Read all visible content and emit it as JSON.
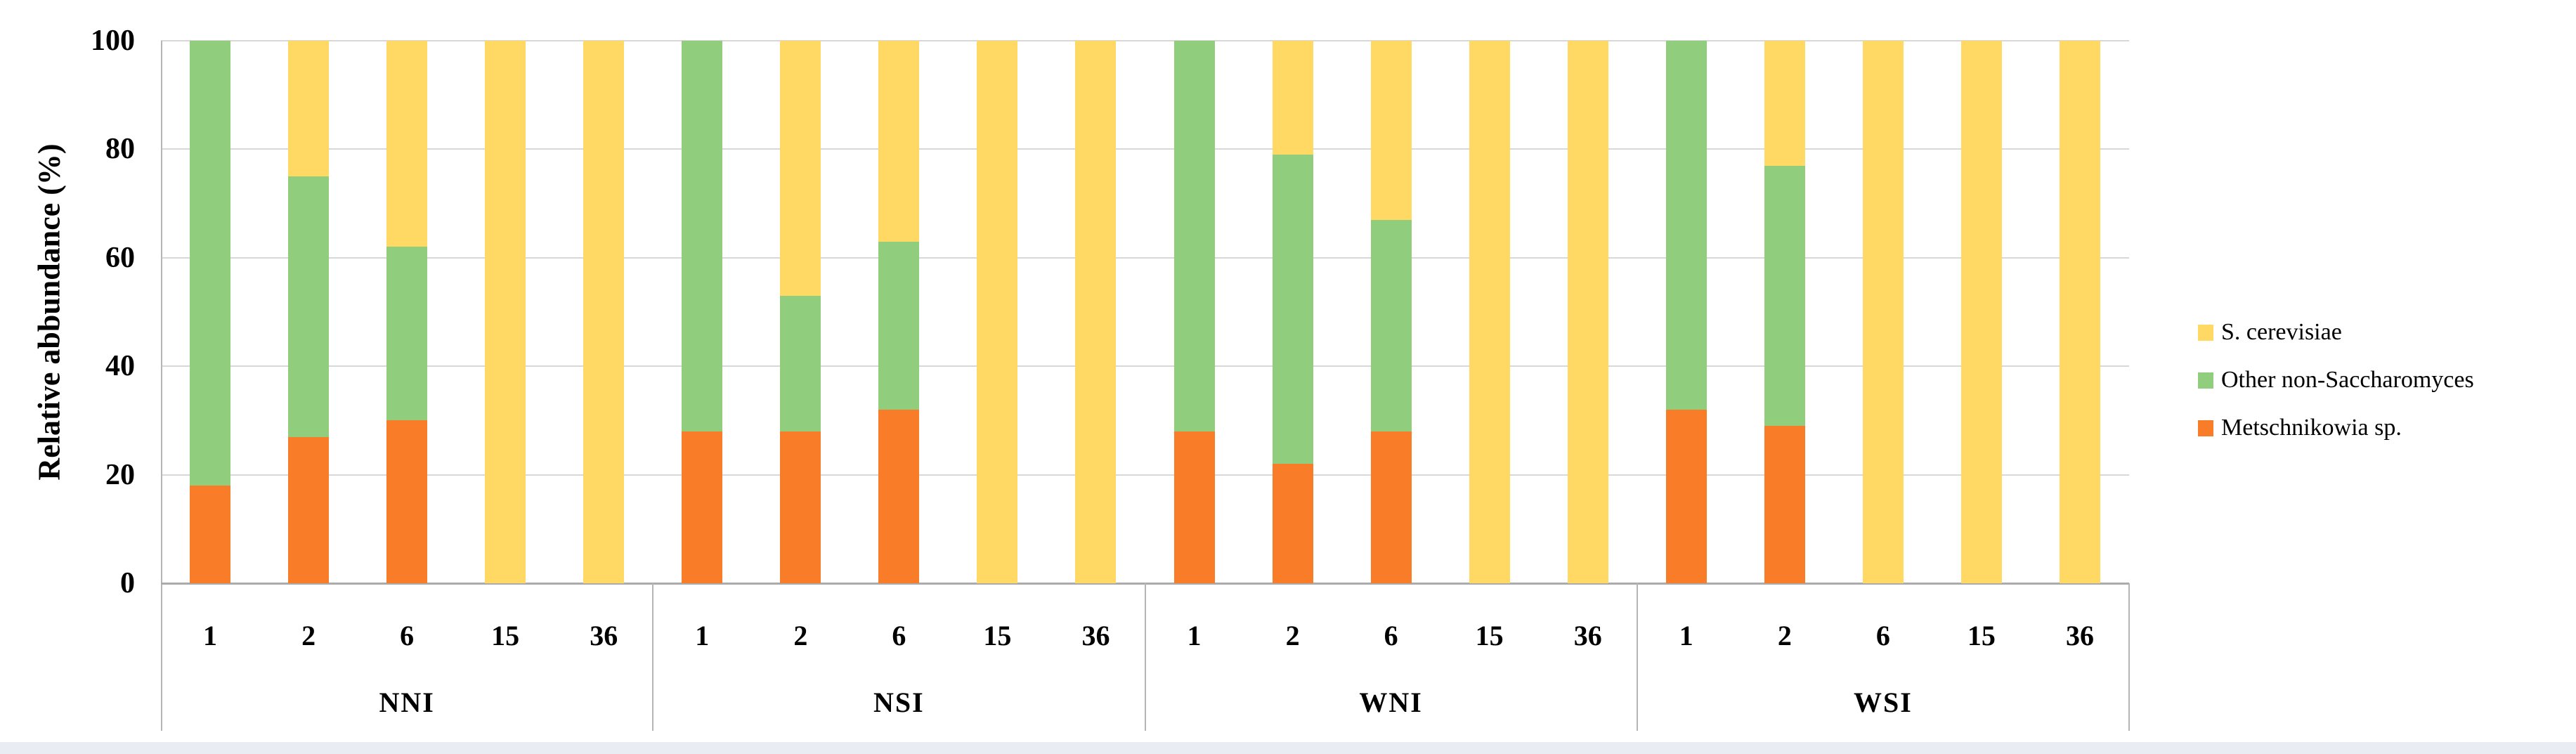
{
  "page": {
    "background": "#ffffff",
    "footer_strip_color": "#E9EDF3"
  },
  "figure": {
    "colors": {
      "s_cerevisiae": "#FFD964",
      "other_non_saccharomyces": "#90CE7D",
      "metschnikowia": "#F97D28",
      "gridline": "#D8D8D8",
      "axis_line": "#ABABAB",
      "separator_line": "#B5B5B5",
      "text": "#000000"
    },
    "legend": [
      {
        "label": "S. cerevisiae",
        "color_key": "s_cerevisiae"
      },
      {
        "label": "Other non-Saccharomyces",
        "color_key": "other_non_saccharomyces"
      },
      {
        "label": "Metschnikowia sp.",
        "color_key": "metschnikowia"
      }
    ]
  },
  "chart_data": {
    "type": "bar",
    "stacked": true,
    "title": "",
    "xlabel": "",
    "ylabel": "Relative abbundance  (%)",
    "ylim": [
      0,
      100
    ],
    "yticks": [
      0,
      20,
      40,
      60,
      80,
      100
    ],
    "grid": true,
    "legend_position": "right",
    "groups": [
      "NNI",
      "NSI",
      "WNI",
      "WSI"
    ],
    "categories": [
      "1",
      "2",
      "6",
      "15",
      "36"
    ],
    "series": [
      {
        "name": "Metschnikowia sp.",
        "color": "#F97D28",
        "values": {
          "NNI": [
            18,
            27,
            30,
            0,
            0
          ],
          "NSI": [
            28,
            28,
            32,
            0,
            0
          ],
          "WNI": [
            28,
            22,
            28,
            0,
            0
          ],
          "WSI": [
            32,
            29,
            0,
            0,
            0
          ]
        }
      },
      {
        "name": "Other non-Saccharomyces",
        "color": "#90CE7D",
        "values": {
          "NNI": [
            82,
            48,
            32,
            0,
            0
          ],
          "NSI": [
            72,
            25,
            31,
            0,
            0
          ],
          "WNI": [
            72,
            57,
            39,
            0,
            0
          ],
          "WSI": [
            68,
            48,
            0,
            0,
            0
          ]
        }
      },
      {
        "name": "S. cerevisiae",
        "color": "#FFD964",
        "values": {
          "NNI": [
            0,
            25,
            38,
            100,
            100
          ],
          "NSI": [
            0,
            47,
            37,
            100,
            100
          ],
          "WNI": [
            0,
            21,
            33,
            100,
            100
          ],
          "WSI": [
            0,
            23,
            100,
            100,
            100
          ]
        }
      }
    ]
  }
}
